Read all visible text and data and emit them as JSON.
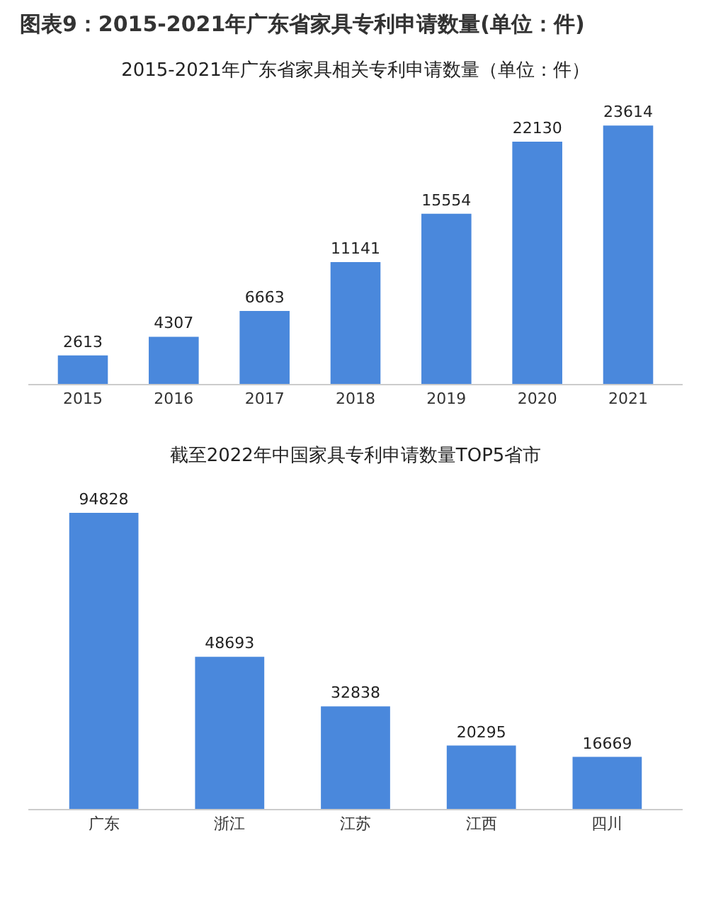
{
  "chart_data": [
    {
      "type": "bar",
      "title": "图表9：2015-2021年广东省家具专利申请数量(单位：件)",
      "subtitle": "2015-2021年广东省家具相关专利申请数量（单位：件）",
      "categories": [
        "2015",
        "2016",
        "2017",
        "2018",
        "2019",
        "2020",
        "2021"
      ],
      "series": [
        {
          "color": "#4a88dc",
          "values": [
            2613,
            4307,
            6663,
            11141,
            15554,
            22130,
            23614
          ]
        }
      ],
      "data_labels": true,
      "grid": false,
      "tick_labels": "x"
    },
    {
      "type": "bar",
      "title": "截至2022年中国家具专利申请数量TOP5省市",
      "categories": [
        "广东",
        "浙江",
        "江苏",
        "江西",
        "四川"
      ],
      "series": [
        {
          "color": "#4a88dc",
          "values": [
            94828,
            48693,
            32838,
            20295,
            16669
          ]
        }
      ],
      "data_labels": true,
      "grid": false,
      "tick_labels": "x"
    }
  ]
}
